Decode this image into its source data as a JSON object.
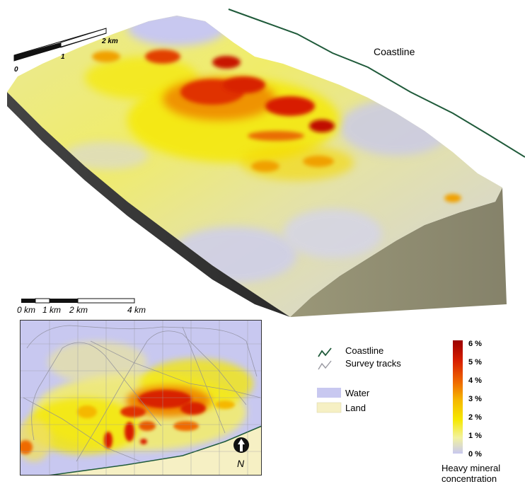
{
  "block_scale": {
    "ticks": [
      "0",
      "1",
      "2 km"
    ]
  },
  "coastline_label": "Coastline",
  "inset_scale": {
    "ticks": [
      "0 km",
      "1 km",
      "2 km",
      "4 km"
    ]
  },
  "north_label": "N",
  "legend": {
    "coastline": "Coastline",
    "survey_tracks": "Survey tracks",
    "water": "Water",
    "land": "Land"
  },
  "colorbar": {
    "ticks": [
      "6 %",
      "5 %",
      "4 %",
      "3 %",
      "2 %",
      "1 %",
      "0 %"
    ],
    "title_line1": "Heavy mineral",
    "title_line2": "concentration",
    "stops": [
      "#c8c8f0",
      "#f2f2a0",
      "#f5e800",
      "#f5b800",
      "#ef6a00",
      "#d81e00",
      "#9a0000"
    ]
  },
  "colors": {
    "coastline": "#1f5a3a",
    "survey_tracks": "#9a9aa2",
    "water": "#c8c8f0",
    "land": "#f6f0c4",
    "block_side": "#8f8c70"
  }
}
